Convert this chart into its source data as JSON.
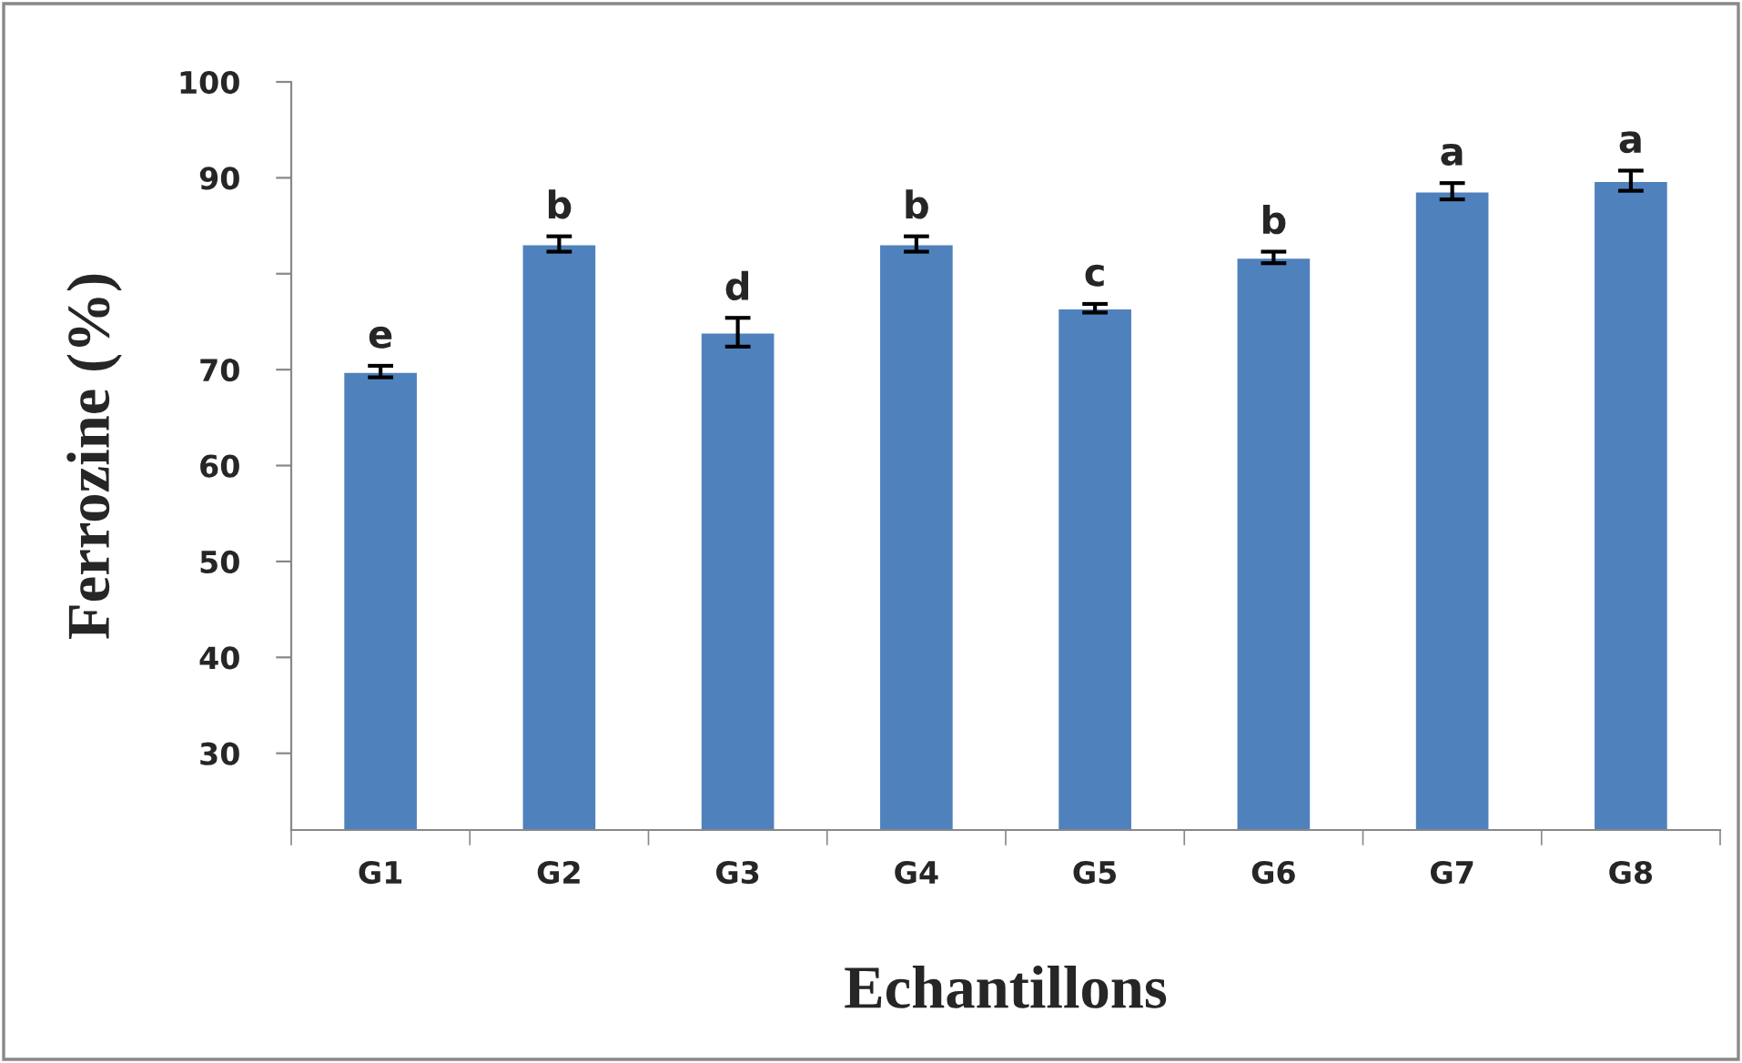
{
  "chart_data": {
    "type": "bar",
    "xlabel": "Echantillons",
    "ylabel": "Ferrozine (%)",
    "categories": [
      "G1",
      "G2",
      "G3",
      "G4",
      "G5",
      "G6",
      "G7",
      "G8"
    ],
    "series": [
      {
        "color": "#4f81bd",
        "values": [
          69.8,
          83.1,
          73.9,
          83.1,
          76.4,
          81.7,
          88.6,
          89.7
        ],
        "errors": [
          0.6,
          0.8,
          1.5,
          0.8,
          0.45,
          0.6,
          0.85,
          1.05
        ]
      }
    ],
    "ylim": [
      22,
      100
    ],
    "yticks": [
      100,
      90,
      {
        "value": 80,
        "label": null
      },
      70,
      60,
      50,
      40,
      30
    ],
    "annotations": [
      {
        "text": "e",
        "x": "G1",
        "y": 70.4
      },
      {
        "text": "b",
        "x": "G2",
        "y": 83.9
      },
      {
        "text": "d",
        "x": "G3",
        "y": 75.4
      },
      {
        "text": "b",
        "x": "G4",
        "y": 83.9
      },
      {
        "text": "c",
        "x": "G5",
        "y": 76.85
      },
      {
        "text": "b",
        "x": "G6",
        "y": 82.3
      },
      {
        "text": "a",
        "x": "G7",
        "y": 89.45
      },
      {
        "text": "a",
        "x": "G8",
        "y": 90.75
      }
    ],
    "grid": false,
    "legend": false
  }
}
